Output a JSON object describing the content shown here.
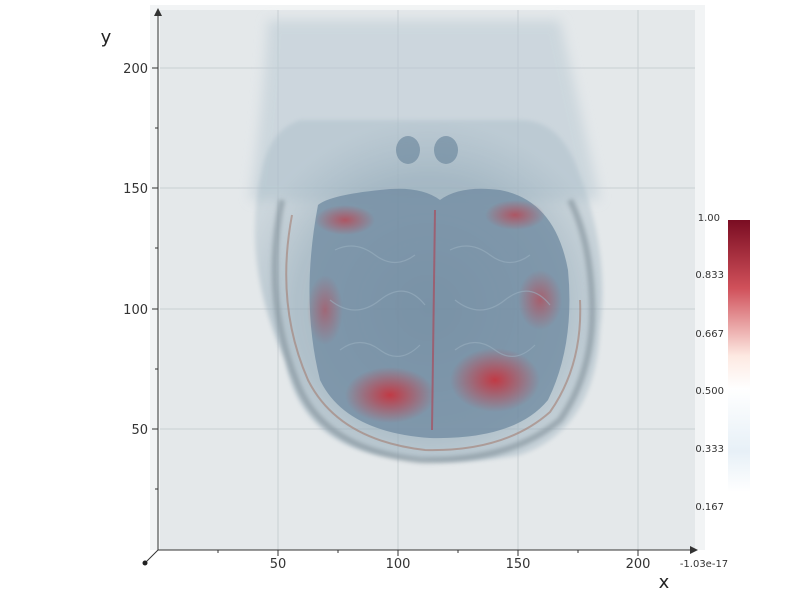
{
  "axes": {
    "x_title": "x",
    "y_title": "y",
    "x_ticks": [
      "50",
      "100",
      "150",
      "200"
    ],
    "y_ticks": [
      "50",
      "100",
      "150",
      "200"
    ]
  },
  "colorbar": {
    "labels": [
      "1.00",
      "0.833",
      "0.667",
      "0.500",
      "0.333",
      "0.167"
    ],
    "min_label": "-1.03e-17",
    "colors": {
      "high": "#7a0c22",
      "mid": "#ffffff",
      "low": "#d6e6f2"
    }
  },
  "volume": {
    "colormap": "RdBu_r"
  }
}
